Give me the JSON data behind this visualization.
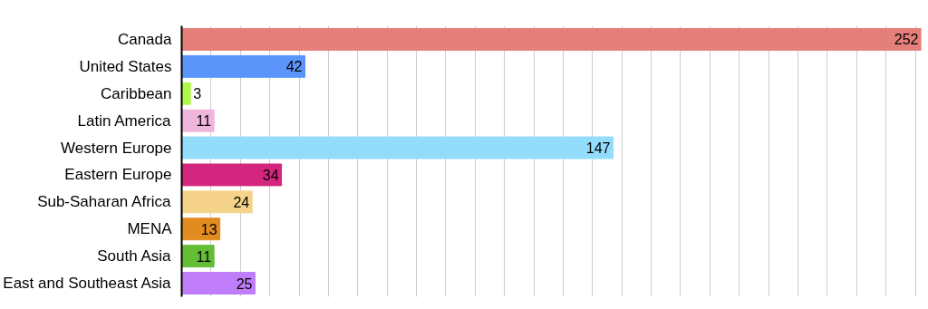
{
  "chart_data": {
    "type": "bar",
    "orientation": "horizontal",
    "data_labels": true,
    "grid": "x",
    "tick_labels": "y",
    "categories": [
      "Canada",
      "United States",
      "Caribbean",
      "Latin America",
      "Western Europe",
      "Eastern Europe",
      "Sub-Saharan Africa",
      "MENA",
      "South Asia",
      "East and Southeast Asia"
    ],
    "values": [
      252,
      42,
      3,
      11,
      147,
      34,
      24,
      13,
      11,
      25
    ],
    "colors": [
      "#e57f79",
      "#5b95f9",
      "#b2f84a",
      "#f0b5da",
      "#93dcfc",
      "#d5267f",
      "#f5d38a",
      "#e28b1f",
      "#63bd35",
      "#c07df9"
    ],
    "xlim": [
      0,
      252
    ],
    "xticks": [
      {
        "value": 0,
        "label": null
      },
      {
        "value": 10,
        "label": null
      },
      {
        "value": 20,
        "label": null
      },
      {
        "value": 30,
        "label": null
      },
      {
        "value": 40,
        "label": null
      },
      {
        "value": 50,
        "label": null
      },
      {
        "value": 60,
        "label": null
      },
      {
        "value": 70,
        "label": null
      },
      {
        "value": 80,
        "label": null
      },
      {
        "value": 90,
        "label": null
      },
      {
        "value": 100,
        "label": null
      },
      {
        "value": 110,
        "label": null
      },
      {
        "value": 120,
        "label": null
      },
      {
        "value": 130,
        "label": null
      },
      {
        "value": 140,
        "label": null
      },
      {
        "value": 150,
        "label": null
      },
      {
        "value": 160,
        "label": null
      },
      {
        "value": 170,
        "label": null
      },
      {
        "value": 180,
        "label": null
      },
      {
        "value": 190,
        "label": null
      },
      {
        "value": 200,
        "label": null
      },
      {
        "value": 210,
        "label": null
      },
      {
        "value": 220,
        "label": null
      },
      {
        "value": 230,
        "label": null
      },
      {
        "value": 240,
        "label": null
      },
      {
        "value": 250,
        "label": null
      }
    ]
  }
}
